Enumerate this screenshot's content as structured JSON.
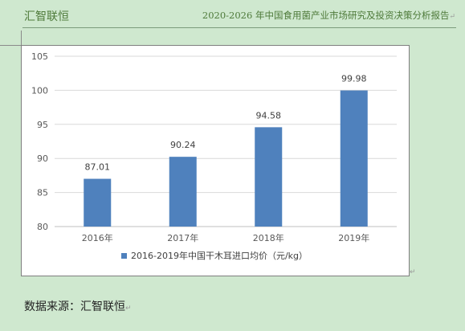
{
  "header": {
    "brand": "汇智联恒",
    "report_title": "2020-2026 年中国食用菌产业市场研究及投资决策分析报告"
  },
  "chart_data": {
    "type": "bar",
    "categories": [
      "2016年",
      "2017年",
      "2018年",
      "2019年"
    ],
    "series": [
      {
        "name": "2016-2019年中国干木耳进口均价（元/kg）",
        "values": [
          87.01,
          90.24,
          94.58,
          99.98
        ]
      }
    ],
    "ylim": [
      80,
      105
    ],
    "yticks": [
      80,
      85,
      90,
      95,
      100,
      105
    ],
    "grid": true,
    "legend_position": "bottom",
    "bar_color": "#4f81bd"
  },
  "footer": {
    "source": "数据来源：汇智联恒"
  },
  "marks": {
    "paragraph": "↵"
  }
}
